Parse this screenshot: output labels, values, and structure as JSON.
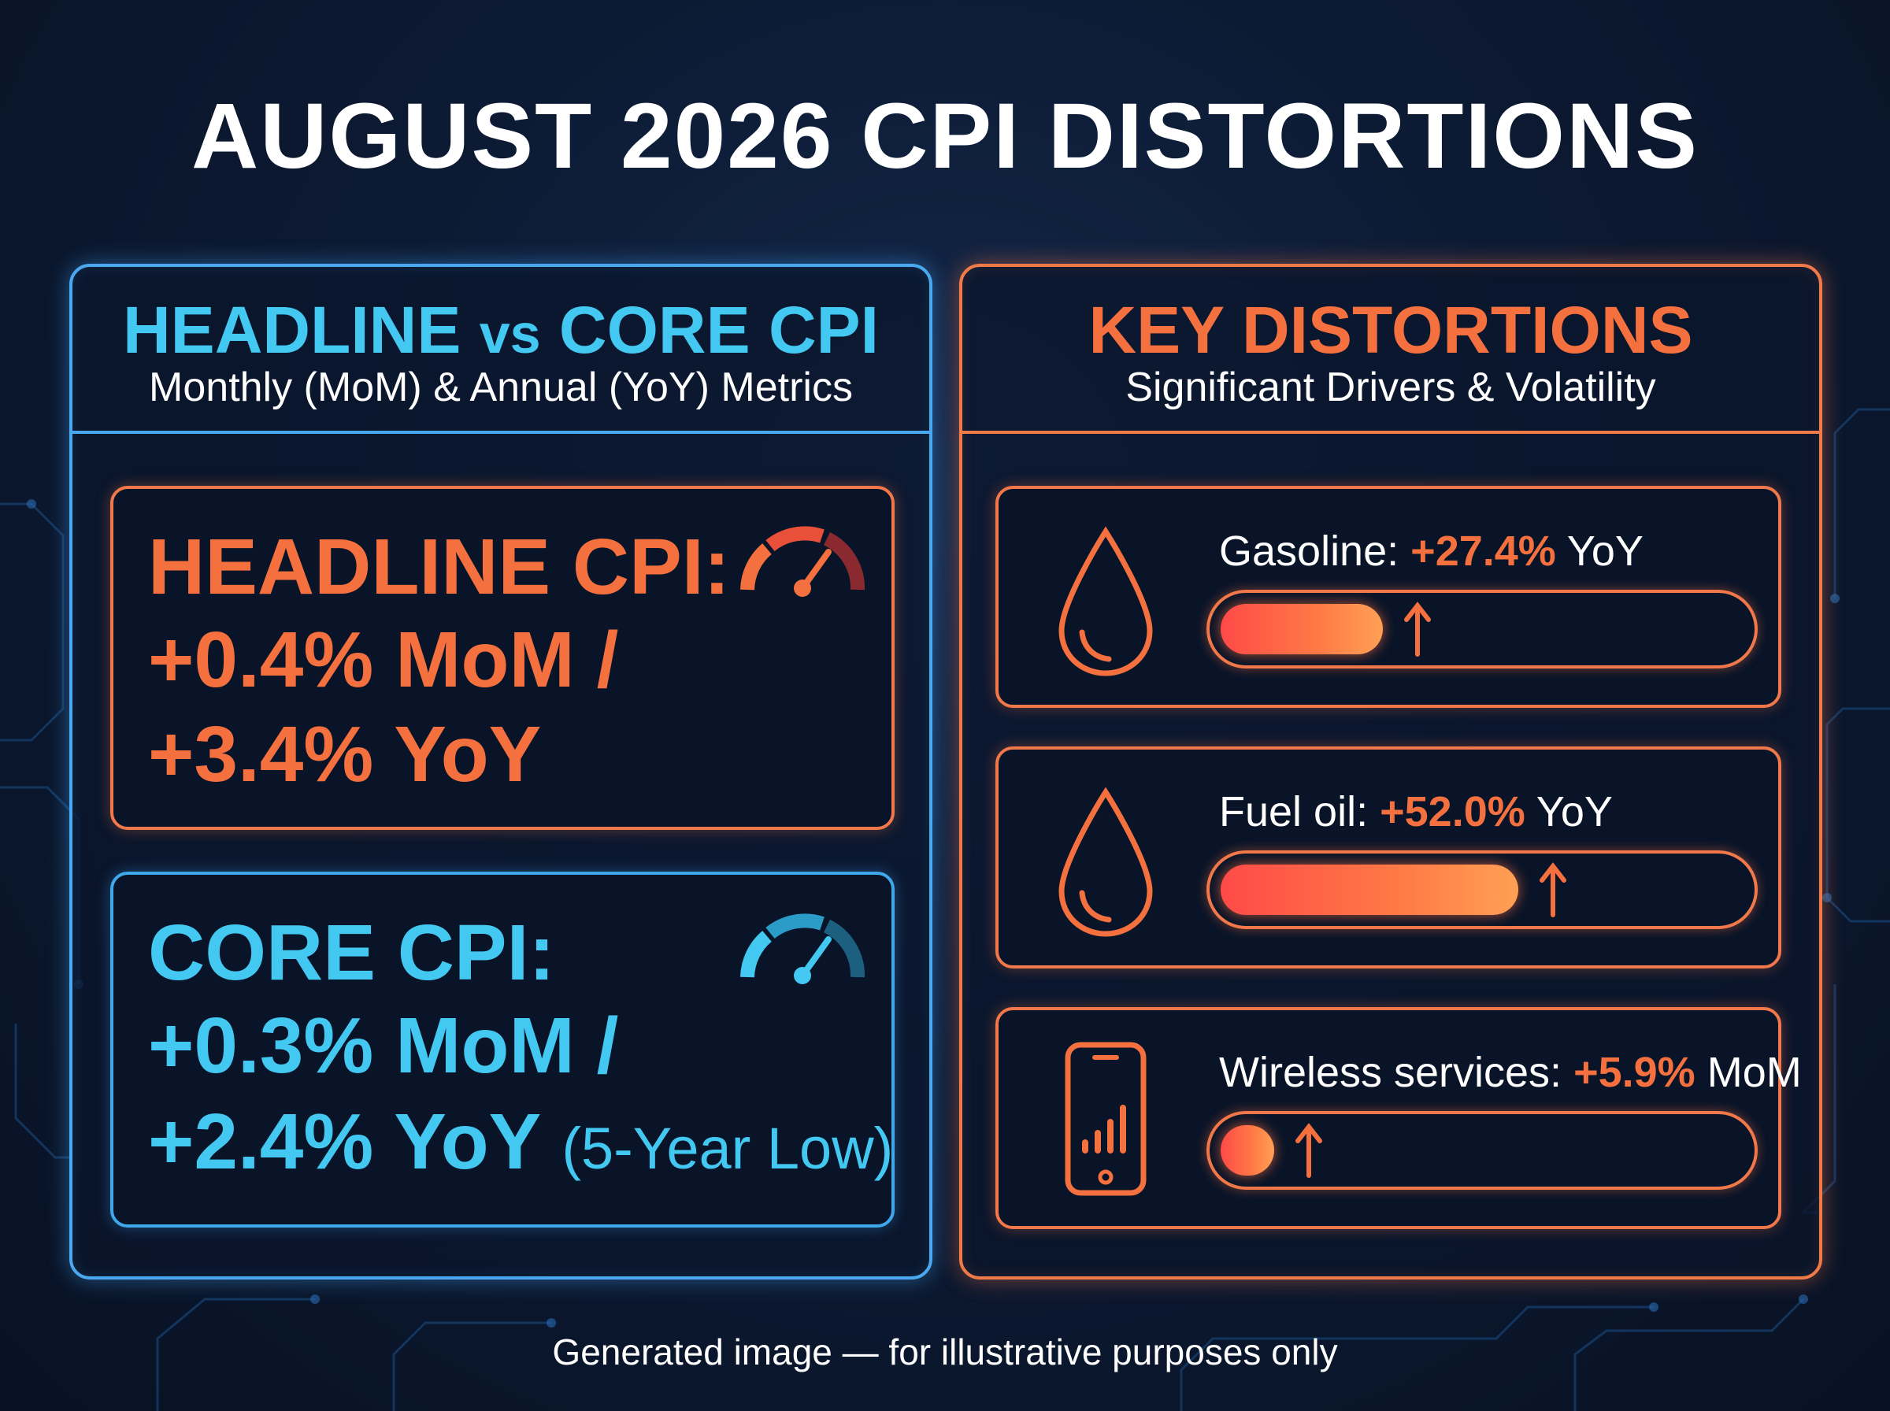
{
  "title": "AUGUST 2026 CPI DISTORTIONS",
  "left_panel": {
    "title_a": "HEADLINE",
    "title_vs": "vs",
    "title_b": "CORE CPI",
    "subtitle": "Monthly (MoM) & Annual (YoY) Metrics",
    "headline": {
      "line1": "HEADLINE CPI:",
      "line2": "+0.4% MoM /",
      "line3": "+3.4% YoY",
      "gauge_icon": "speedometer-icon"
    },
    "core": {
      "line1": "CORE CPI:",
      "line2": "+0.3% MoM /",
      "line3": "+2.4% YoY",
      "note": "(5-Year Low)",
      "gauge_icon": "speedometer-icon"
    }
  },
  "right_panel": {
    "title": "KEY DISTORTIONS",
    "subtitle": "Significant Drivers & Volatility",
    "items": [
      {
        "label": "Gasoline:",
        "value": "+27.4%",
        "unit": "YoY",
        "bar_fraction": 0.31,
        "icon": "droplet-icon",
        "trend": "up"
      },
      {
        "label": "Fuel oil:",
        "value": "+52.0%",
        "unit": "YoY",
        "bar_fraction": 0.57,
        "icon": "droplet-icon",
        "trend": "up"
      },
      {
        "label": "Wireless services:",
        "value": "+5.9%",
        "unit": "MoM",
        "bar_fraction": 0.1,
        "icon": "smartphone-signal-icon",
        "trend": "up"
      }
    ]
  },
  "footer": "Generated image — for illustrative purposes only",
  "colors": {
    "blue": "#43c8f2",
    "orange": "#f4703e",
    "background": "#0c1a33"
  }
}
